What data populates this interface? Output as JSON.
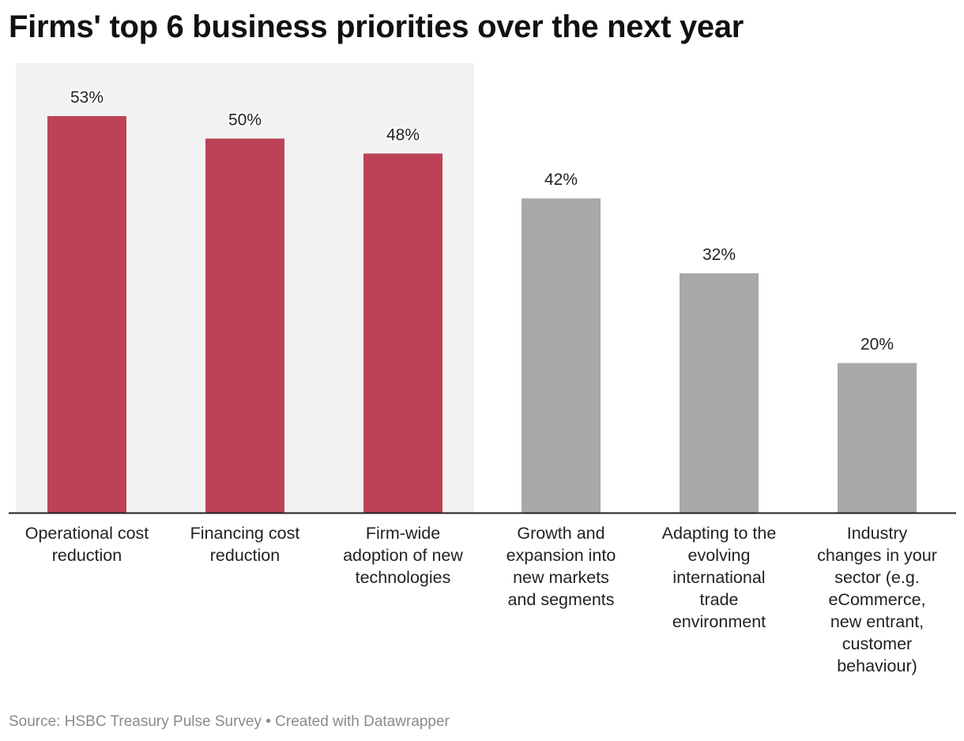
{
  "chart_data": {
    "type": "bar",
    "title": "Firms' top 6 business priorities over the next year",
    "categories": [
      [
        "Operational cost",
        "reduction"
      ],
      [
        "Financing cost",
        "reduction"
      ],
      [
        "Firm-wide",
        "adoption of new",
        "technologies"
      ],
      [
        "Growth and",
        "expansion into",
        "new markets",
        "and segments"
      ],
      [
        "Adapting to the",
        "evolving",
        "international",
        "trade",
        "environment"
      ],
      [
        "Industry",
        "changes in your",
        "sector (e.g.",
        "eCommerce,",
        "new entrant,",
        "customer",
        "behaviour)"
      ]
    ],
    "values": [
      53,
      50,
      48,
      42,
      32,
      20
    ],
    "value_labels": [
      "53%",
      "50%",
      "48%",
      "42%",
      "32%",
      "20%"
    ],
    "highlighted": [
      true,
      true,
      true,
      false,
      false,
      false
    ],
    "ylim": [
      0,
      53
    ],
    "xlabel": "",
    "ylabel": "",
    "colors": {
      "highlight": "#bd4257",
      "default": "#a8a8a8",
      "highlight_background": "#f2f2f2",
      "axis": "#222222"
    }
  },
  "footer": {
    "source": "Source: HSBC Treasury Pulse Survey • Created with Datawrapper"
  }
}
